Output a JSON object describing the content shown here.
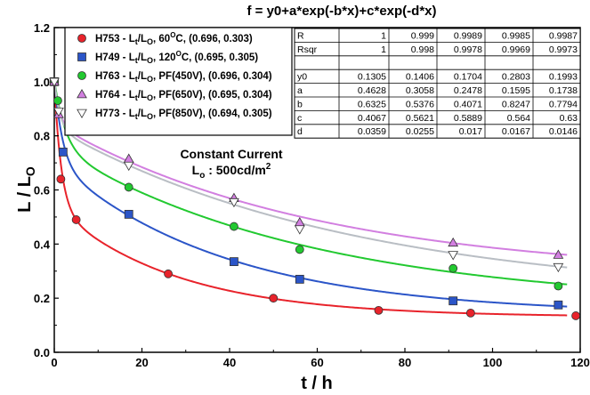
{
  "chart_data": {
    "type": "scatter",
    "title": "f = y0+a*exp(-b*x)+c*exp(-d*x)",
    "xlabel_main": "t / h",
    "ylabel_main": "L / L",
    "ylabel_sub": "O",
    "xlim": [
      0,
      120
    ],
    "ylim": [
      0.0,
      1.2
    ],
    "xticks": [
      "0",
      "20",
      "40",
      "60",
      "80",
      "100",
      "120"
    ],
    "yticks": [
      "0.0",
      "0.2",
      "0.4",
      "0.6",
      "0.8",
      "1.0",
      "1.2"
    ],
    "grid": false,
    "legend_position": "top-left",
    "annotation": {
      "line1": "Constant Current",
      "line2_main": "L",
      "line2_sub": "o",
      "line2_rest": " : 500cd/m",
      "line2_sup": "2"
    },
    "series": [
      {
        "legend": {
          "pre": "H753 - L",
          "sub1": "t",
          "mid": "/L",
          "sub2": "O",
          "post": ", 60",
          "sup": "O",
          "tail": "C, (0.696, 0.303)"
        },
        "marker": "circle",
        "color": "#e8232b",
        "fit": {
          "y0": 0.1305,
          "a": 0.4628,
          "b": 0.6325,
          "c": 0.4067,
          "d": 0.0359
        },
        "x": [
          0,
          1.5,
          5,
          26,
          50,
          74,
          95,
          119
        ],
        "y": [
          1.0,
          0.64,
          0.49,
          0.29,
          0.2,
          0.155,
          0.145,
          0.135
        ]
      },
      {
        "legend": {
          "pre": "H749 - L",
          "sub1": "t",
          "mid": "/L",
          "sub2": "O",
          "post": ", 120",
          "sup": "O",
          "tail": "C, (0.695, 0.305)"
        },
        "marker": "square",
        "color": "#2b55c8",
        "fit": {
          "y0": 0.1406,
          "a": 0.3058,
          "b": 0.5376,
          "c": 0.5621,
          "d": 0.0255
        },
        "x": [
          0,
          2,
          17,
          41,
          56,
          91,
          115
        ],
        "y": [
          1.0,
          0.74,
          0.51,
          0.335,
          0.27,
          0.19,
          0.175
        ]
      },
      {
        "legend": {
          "pre": "H763 - L",
          "sub1": "t",
          "mid": "/L",
          "sub2": "O",
          "post": ", PF(450V), (0.696, 0.304)",
          "sup": "",
          "tail": ""
        },
        "marker": "circle",
        "color": "#22c930",
        "fit": {
          "y0": 0.1704,
          "a": 0.2478,
          "b": 0.4071,
          "c": 0.5889,
          "d": 0.017
        },
        "x": [
          0,
          0.8,
          17,
          41,
          56,
          91,
          115
        ],
        "y": [
          1.0,
          0.93,
          0.61,
          0.465,
          0.38,
          0.31,
          0.245
        ]
      },
      {
        "legend": {
          "pre": "H764 - L",
          "sub1": "t",
          "mid": "/L",
          "sub2": "O",
          "post": ", PF(650V), (0.695, 0.304)",
          "sup": "",
          "tail": ""
        },
        "marker": "triangle-up",
        "color": "#d27fe0",
        "fit": {
          "y0": 0.2803,
          "a": 0.1595,
          "b": 0.8247,
          "c": 0.564,
          "d": 0.0167
        },
        "x": [
          0,
          1,
          17,
          41,
          56,
          91,
          115
        ],
        "y": [
          1.0,
          0.88,
          0.715,
          0.57,
          0.48,
          0.405,
          0.36
        ]
      },
      {
        "legend": {
          "pre": "H773 - L",
          "sub1": "t",
          "mid": "/L",
          "sub2": "O",
          "post": ", PF(850V), (0.694, 0.305)",
          "sup": "",
          "tail": ""
        },
        "marker": "triangle-down",
        "color": "#ffffff",
        "line_color": "#b9bec4",
        "fit": {
          "y0": 0.1993,
          "a": 0.1738,
          "b": 0.7794,
          "c": 0.63,
          "d": 0.0146
        },
        "x": [
          0,
          1,
          17,
          41,
          56,
          91,
          115
        ],
        "y": [
          1.0,
          0.89,
          0.69,
          0.555,
          0.455,
          0.36,
          0.315
        ]
      }
    ],
    "table": {
      "rows": [
        [
          "R",
          "1",
          "0.999",
          "0.9989",
          "0.9985",
          "0.9987"
        ],
        [
          "Rsqr",
          "1",
          "0.998",
          "0.9978",
          "0.9969",
          "0.9973"
        ],
        [
          "",
          "",
          "",
          "",
          "",
          ""
        ],
        [
          "y0",
          "0.1305",
          "0.1406",
          "0.1704",
          "0.2803",
          "0.1993"
        ],
        [
          "a",
          "0.4628",
          "0.3058",
          "0.2478",
          "0.1595",
          "0.1738"
        ],
        [
          "b",
          "0.6325",
          "0.5376",
          "0.4071",
          "0.8247",
          "0.7794"
        ],
        [
          "c",
          "0.4067",
          "0.5621",
          "0.5889",
          "0.564",
          "0.63"
        ],
        [
          "d",
          "0.0359",
          "0.0255",
          "0.017",
          "0.0167",
          "0.0146"
        ]
      ]
    }
  }
}
